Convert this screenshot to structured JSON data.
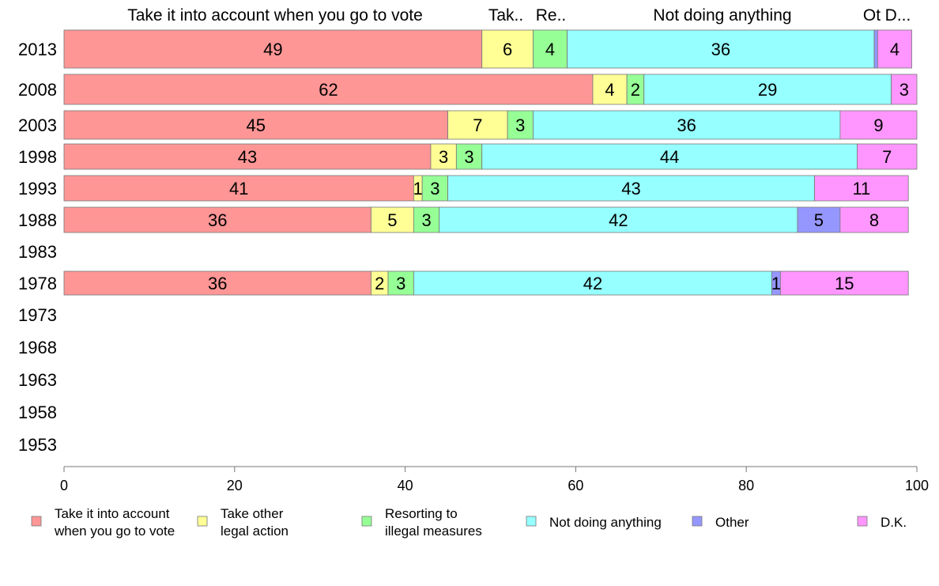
{
  "chart_data": {
    "type": "bar",
    "orientation": "horizontal",
    "stacked": true,
    "categories": [
      "2013",
      "2008",
      "2003",
      "1998",
      "1993",
      "1988",
      "1983",
      "1978",
      "1973",
      "1968",
      "1963",
      "1958",
      "1953"
    ],
    "series": [
      {
        "name": "Take it into account when you go to vote",
        "legend_lines": [
          "Take it into account",
          "when you go to vote"
        ],
        "top_label": "Take it into account when you go to vote",
        "color": "#ff9696",
        "values": [
          49,
          62,
          45,
          43,
          41,
          36,
          null,
          36,
          null,
          null,
          null,
          null,
          null
        ]
      },
      {
        "name": "Take other legal action",
        "legend_lines": [
          "Take other",
          "legal action"
        ],
        "top_label": "Tak..",
        "color": "#ffff96",
        "values": [
          6,
          4,
          7,
          3,
          1,
          5,
          null,
          2,
          null,
          null,
          null,
          null,
          null
        ]
      },
      {
        "name": "Resorting to illegal measures",
        "legend_lines": [
          "Resorting to",
          "illegal measures"
        ],
        "top_label": "Re..",
        "color": "#96ff96",
        "values": [
          4,
          2,
          3,
          3,
          3,
          3,
          null,
          3,
          null,
          null,
          null,
          null,
          null
        ]
      },
      {
        "name": "Not doing anything",
        "legend_lines": [
          "Not doing anything"
        ],
        "top_label": "Not doing anything",
        "color": "#96ffff",
        "values": [
          36,
          29,
          36,
          44,
          43,
          42,
          null,
          42,
          null,
          null,
          null,
          null,
          null
        ]
      },
      {
        "name": "Other",
        "legend_lines": [
          "Other"
        ],
        "top_label": "Ot",
        "color": "#9696ff",
        "values": [
          0.4,
          0,
          0,
          0,
          0,
          5,
          null,
          1,
          null,
          null,
          null,
          null,
          null
        ]
      },
      {
        "name": "D.K.",
        "legend_lines": [
          "D.K."
        ],
        "top_label": "D...",
        "color": "#ff96ff",
        "values": [
          4,
          3,
          9,
          7,
          11,
          8,
          null,
          15,
          null,
          null,
          null,
          null,
          null
        ]
      }
    ],
    "data_labels": [
      [
        "49",
        "6",
        "4",
        "36",
        "",
        "4"
      ],
      [
        "62",
        "4",
        "2",
        "29",
        "",
        "3"
      ],
      [
        "45",
        "7",
        "3",
        "36",
        "",
        "9"
      ],
      [
        "43",
        "3",
        "3",
        "44",
        "",
        "7"
      ],
      [
        "41",
        "1",
        "3",
        "43",
        "",
        "11"
      ],
      [
        "36",
        "5",
        "3",
        "42",
        "5",
        "8"
      ],
      [
        "",
        "",
        "",
        "",
        "",
        ""
      ],
      [
        "36",
        "2",
        "3",
        "42",
        "1",
        "15"
      ],
      [
        "",
        "",
        "",
        "",
        "",
        ""
      ],
      [
        "",
        "",
        "",
        "",
        "",
        ""
      ],
      [
        "",
        "",
        "",
        "",
        "",
        ""
      ],
      [
        "",
        "",
        "",
        "",
        "",
        ""
      ],
      [
        "",
        "",
        "",
        "",
        "",
        ""
      ]
    ],
    "x_ticks": [
      0,
      20,
      40,
      60,
      80,
      100
    ],
    "xlim": [
      0,
      100
    ],
    "xlabel": "",
    "ylabel": "",
    "title": "",
    "grid": false,
    "legend_position": "bottom"
  }
}
